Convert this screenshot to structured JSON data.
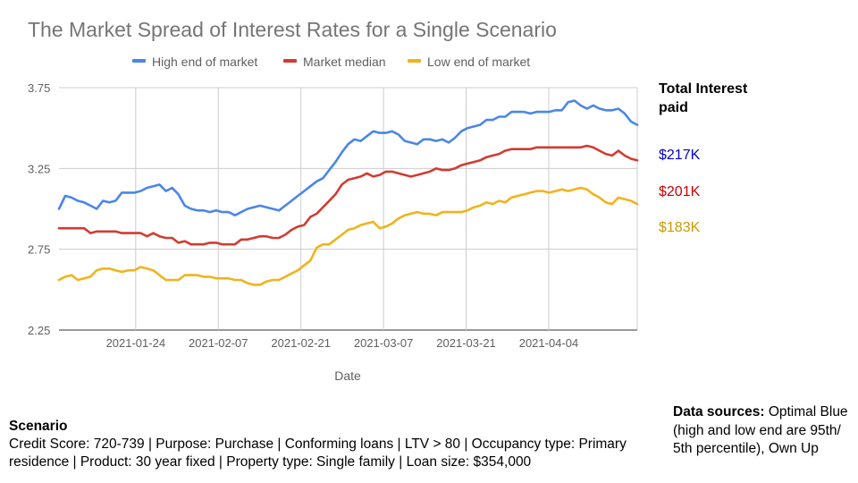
{
  "chart_data": {
    "type": "line",
    "title": "The Market Spread of Interest Rates for a Single Scenario",
    "xlabel": "Date",
    "ylabel": "",
    "ylim": [
      2.25,
      3.75
    ],
    "yticks": [
      "2.25",
      "2.75",
      "3.25",
      "3.75"
    ],
    "xticks": [
      "2021-01-24",
      "2021-02-07",
      "2021-02-21",
      "2021-03-07",
      "2021-03-21",
      "2021-04-04"
    ],
    "x_domain_days": [
      0,
      98
    ],
    "xtick_days": [
      13,
      27,
      41,
      55,
      69,
      83
    ],
    "n_points": 93,
    "grid": true,
    "legend_position": "top",
    "series": [
      {
        "name": "High end of market",
        "color": "#4a86e8",
        "values": [
          3.0,
          3.08,
          3.07,
          3.05,
          3.04,
          3.02,
          3.0,
          3.05,
          3.04,
          3.05,
          3.1,
          3.1,
          3.1,
          3.11,
          3.13,
          3.14,
          3.15,
          3.11,
          3.13,
          3.09,
          3.02,
          3.0,
          2.99,
          2.99,
          2.98,
          2.99,
          2.98,
          2.98,
          2.96,
          2.98,
          3.0,
          3.01,
          3.02,
          3.01,
          3.0,
          2.99,
          3.02,
          3.05,
          3.08,
          3.11,
          3.14,
          3.17,
          3.19,
          3.24,
          3.29,
          3.35,
          3.4,
          3.43,
          3.42,
          3.45,
          3.48,
          3.47,
          3.47,
          3.48,
          3.46,
          3.42,
          3.41,
          3.4,
          3.43,
          3.43,
          3.42,
          3.43,
          3.41,
          3.44,
          3.48,
          3.5,
          3.51,
          3.52,
          3.55,
          3.55,
          3.57,
          3.57,
          3.6,
          3.6,
          3.6,
          3.59,
          3.6,
          3.6,
          3.6,
          3.61,
          3.61,
          3.66,
          3.67,
          3.64,
          3.62,
          3.64,
          3.62,
          3.61,
          3.61,
          3.62,
          3.59,
          3.54,
          3.52
        ]
      },
      {
        "name": "Market median",
        "color": "#d23b32",
        "values": [
          2.88,
          2.88,
          2.88,
          2.88,
          2.88,
          2.85,
          2.86,
          2.86,
          2.86,
          2.86,
          2.85,
          2.85,
          2.85,
          2.85,
          2.83,
          2.85,
          2.83,
          2.82,
          2.82,
          2.79,
          2.8,
          2.78,
          2.78,
          2.78,
          2.79,
          2.79,
          2.78,
          2.78,
          2.78,
          2.81,
          2.81,
          2.82,
          2.83,
          2.83,
          2.82,
          2.82,
          2.84,
          2.87,
          2.89,
          2.9,
          2.95,
          2.97,
          3.01,
          3.05,
          3.09,
          3.15,
          3.18,
          3.19,
          3.2,
          3.22,
          3.2,
          3.21,
          3.23,
          3.23,
          3.22,
          3.21,
          3.2,
          3.21,
          3.22,
          3.23,
          3.25,
          3.24,
          3.24,
          3.25,
          3.27,
          3.28,
          3.29,
          3.3,
          3.32,
          3.33,
          3.34,
          3.36,
          3.37,
          3.37,
          3.37,
          3.37,
          3.38,
          3.38,
          3.38,
          3.38,
          3.38,
          3.38,
          3.38,
          3.38,
          3.39,
          3.38,
          3.36,
          3.34,
          3.33,
          3.36,
          3.33,
          3.31,
          3.3
        ]
      },
      {
        "name": "Low end of market",
        "color": "#f1b31c",
        "values": [
          2.56,
          2.58,
          2.59,
          2.56,
          2.57,
          2.58,
          2.62,
          2.63,
          2.63,
          2.62,
          2.61,
          2.62,
          2.62,
          2.64,
          2.63,
          2.62,
          2.59,
          2.56,
          2.56,
          2.56,
          2.59,
          2.59,
          2.59,
          2.58,
          2.58,
          2.57,
          2.57,
          2.57,
          2.56,
          2.56,
          2.54,
          2.53,
          2.53,
          2.55,
          2.56,
          2.56,
          2.58,
          2.6,
          2.62,
          2.65,
          2.68,
          2.76,
          2.78,
          2.78,
          2.81,
          2.84,
          2.87,
          2.88,
          2.9,
          2.91,
          2.92,
          2.88,
          2.89,
          2.91,
          2.94,
          2.96,
          2.97,
          2.98,
          2.97,
          2.97,
          2.96,
          2.98,
          2.98,
          2.98,
          2.98,
          2.99,
          3.01,
          3.02,
          3.04,
          3.03,
          3.05,
          3.04,
          3.07,
          3.08,
          3.09,
          3.1,
          3.11,
          3.11,
          3.1,
          3.11,
          3.12,
          3.11,
          3.12,
          3.13,
          3.12,
          3.09,
          3.07,
          3.04,
          3.03,
          3.07,
          3.06,
          3.05,
          3.03
        ]
      }
    ]
  },
  "totals": {
    "heading": "Total Interest paid",
    "items": [
      {
        "value": "$217K",
        "color": "#0000cc"
      },
      {
        "value": "$201K",
        "color": "#cc0000"
      },
      {
        "value": "$183K",
        "color": "#cc9a00"
      }
    ]
  },
  "scenario": {
    "heading": "Scenario",
    "details": "Credit Score: 720-739 | Purpose: Purchase | Conforming loans | LTV > 80 | Occupancy type: Primary residence | Product: 30 year fixed | Property type: Single family | Loan size: $354,000"
  },
  "sources": {
    "label": "Data sources:",
    "text": " Optimal Blue (high and low end are 95th/ 5th percentile), Own Up"
  }
}
